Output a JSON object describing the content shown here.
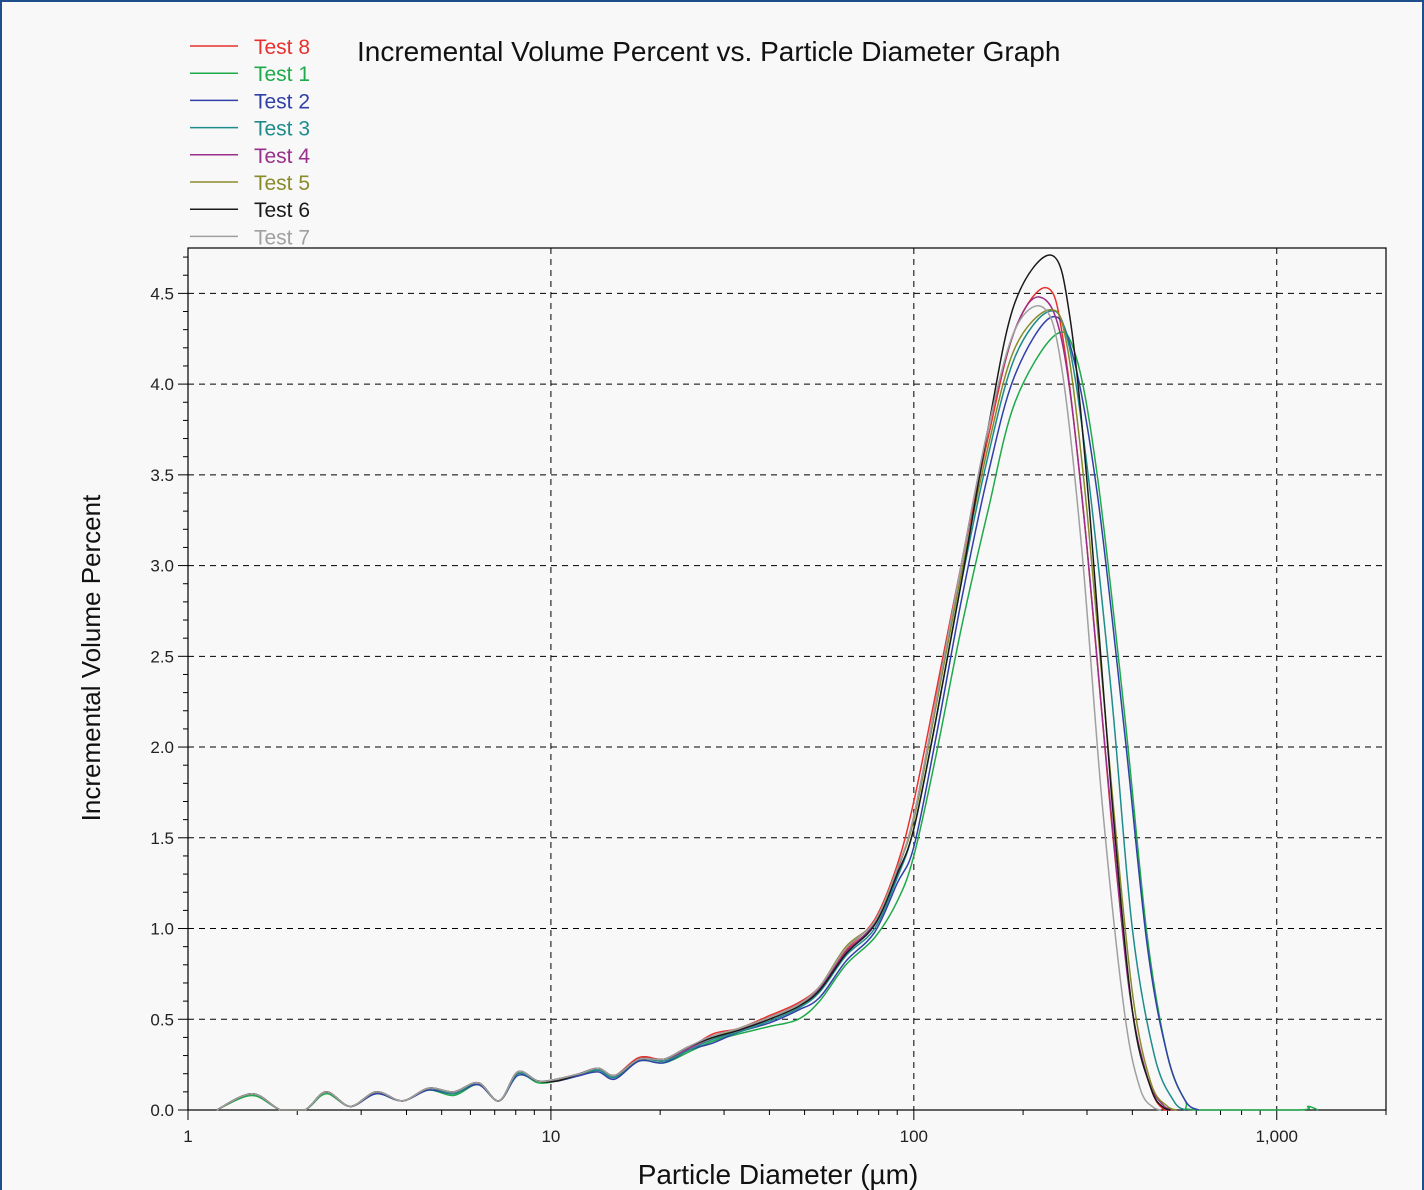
{
  "chart_data": {
    "type": "line",
    "title": "Incremental Volume Percent vs. Particle Diameter Graph",
    "xlabel": "Particle Diameter (µm)",
    "ylabel": "Incremental Volume Percent",
    "xscale": "log",
    "xlim": [
      1,
      2000
    ],
    "ylim": [
      0,
      4.75
    ],
    "grid": true,
    "legend": "top-left",
    "xticks": [
      {
        "value": 1,
        "label": "1"
      },
      {
        "value": 10,
        "label": "10"
      },
      {
        "value": 100,
        "label": "100"
      },
      {
        "value": 1000,
        "label": "1,000"
      }
    ],
    "yticks": [
      {
        "value": 0,
        "label": "0.0"
      },
      {
        "value": 0.5,
        "label": "0.5"
      },
      {
        "value": 1.0,
        "label": "1.0"
      },
      {
        "value": 1.5,
        "label": "1.5"
      },
      {
        "value": 2.0,
        "label": "2.0"
      },
      {
        "value": 2.5,
        "label": "2.5"
      },
      {
        "value": 3.0,
        "label": "3.0"
      },
      {
        "value": 3.5,
        "label": "3.5"
      },
      {
        "value": 4.0,
        "label": "4.0"
      },
      {
        "value": 4.5,
        "label": "4.5"
      }
    ],
    "series": [
      {
        "name": "Test 8",
        "color": "#e8312e",
        "peak_x": 233,
        "peak_y": 4.53,
        "end_x": 490,
        "x": [
          1.2,
          1.5,
          1.8,
          2.1,
          2.4,
          2.8,
          3.3,
          3.9,
          4.6,
          5.4,
          6.3,
          7.2,
          8.1,
          9.2,
          10.4,
          12,
          13.5,
          15,
          17.5,
          20.5,
          24,
          28,
          33,
          40,
          48,
          55,
          65,
          78,
          90,
          100,
          115,
          135,
          160,
          190,
          233,
          260,
          300,
          350,
          400,
          450,
          490,
          520
        ],
        "y": [
          0.0,
          0.09,
          0.0,
          0.0,
          0.1,
          0.02,
          0.1,
          0.05,
          0.12,
          0.09,
          0.15,
          0.05,
          0.21,
          0.16,
          0.17,
          0.2,
          0.23,
          0.19,
          0.29,
          0.28,
          0.34,
          0.42,
          0.45,
          0.52,
          0.59,
          0.68,
          0.88,
          1.05,
          1.35,
          1.7,
          2.3,
          3.0,
          3.7,
          4.3,
          4.53,
          4.2,
          3.1,
          1.6,
          0.55,
          0.12,
          0.0,
          0.0
        ]
      },
      {
        "name": "Test 1",
        "color": "#1faa4a",
        "peak_x": 245,
        "peak_y": 4.27,
        "end_x": 600,
        "x": [
          1.2,
          1.5,
          1.8,
          2.1,
          2.4,
          2.8,
          3.3,
          3.9,
          4.6,
          5.4,
          6.3,
          7.2,
          8.1,
          9.2,
          10.4,
          12,
          13.5,
          15,
          17.5,
          20.5,
          24,
          28,
          33,
          40,
          48,
          55,
          65,
          78,
          90,
          100,
          115,
          135,
          160,
          190,
          245,
          280,
          320,
          380,
          440,
          500,
          560,
          600,
          1150,
          1220,
          1300
        ],
        "y": [
          0.0,
          0.08,
          0.0,
          0.0,
          0.09,
          0.02,
          0.09,
          0.05,
          0.11,
          0.08,
          0.14,
          0.05,
          0.2,
          0.15,
          0.16,
          0.19,
          0.22,
          0.18,
          0.27,
          0.26,
          0.32,
          0.38,
          0.42,
          0.46,
          0.5,
          0.6,
          0.8,
          0.95,
          1.15,
          1.4,
          1.95,
          2.65,
          3.3,
          3.9,
          4.27,
          4.15,
          3.5,
          2.2,
          0.95,
          0.3,
          0.05,
          0.0,
          0.0,
          0.02,
          0.0
        ]
      },
      {
        "name": "Test 2",
        "color": "#3040a8",
        "peak_x": 240,
        "peak_y": 4.37,
        "end_x": 610,
        "x": [
          1.2,
          1.5,
          1.8,
          2.1,
          2.4,
          2.8,
          3.3,
          3.9,
          4.6,
          5.4,
          6.3,
          7.2,
          8.1,
          9.2,
          10.4,
          12,
          13.5,
          15,
          17.5,
          20.5,
          24,
          28,
          33,
          40,
          48,
          55,
          65,
          78,
          90,
          100,
          115,
          135,
          160,
          190,
          240,
          275,
          320,
          380,
          440,
          500,
          560,
          610
        ],
        "y": [
          0.0,
          0.09,
          0.0,
          0.0,
          0.1,
          0.02,
          0.09,
          0.05,
          0.11,
          0.09,
          0.14,
          0.05,
          0.19,
          0.16,
          0.16,
          0.19,
          0.21,
          0.17,
          0.27,
          0.26,
          0.33,
          0.37,
          0.43,
          0.48,
          0.55,
          0.62,
          0.82,
          0.98,
          1.25,
          1.45,
          2.05,
          2.8,
          3.5,
          4.05,
          4.37,
          4.15,
          3.4,
          2.1,
          0.9,
          0.3,
          0.05,
          0.0
        ]
      },
      {
        "name": "Test 3",
        "color": "#1e8c8c",
        "peak_x": 235,
        "peak_y": 4.4,
        "end_x": 560,
        "x": [
          1.2,
          1.5,
          1.8,
          2.1,
          2.4,
          2.8,
          3.3,
          3.9,
          4.6,
          5.4,
          6.3,
          7.2,
          8.1,
          9.2,
          10.4,
          12,
          13.5,
          15,
          17.5,
          20.5,
          24,
          28,
          33,
          40,
          48,
          55,
          65,
          78,
          90,
          100,
          115,
          135,
          160,
          190,
          235,
          265,
          300,
          350,
          400,
          460,
          520,
          560
        ],
        "y": [
          0.0,
          0.09,
          0.0,
          0.0,
          0.1,
          0.02,
          0.1,
          0.05,
          0.12,
          0.09,
          0.15,
          0.05,
          0.2,
          0.16,
          0.17,
          0.2,
          0.22,
          0.18,
          0.28,
          0.27,
          0.33,
          0.39,
          0.43,
          0.49,
          0.56,
          0.65,
          0.85,
          1.0,
          1.28,
          1.55,
          2.15,
          2.9,
          3.6,
          4.15,
          4.4,
          4.25,
          3.55,
          2.3,
          1.0,
          0.3,
          0.05,
          0.0
        ]
      },
      {
        "name": "Test 4",
        "color": "#9a2e8c",
        "peak_x": 222,
        "peak_y": 4.48,
        "end_x": 520,
        "x": [
          1.2,
          1.5,
          1.8,
          2.1,
          2.4,
          2.8,
          3.3,
          3.9,
          4.6,
          5.4,
          6.3,
          7.2,
          8.1,
          9.2,
          10.4,
          12,
          13.5,
          15,
          17.5,
          20.5,
          24,
          28,
          33,
          40,
          48,
          55,
          65,
          78,
          90,
          100,
          115,
          135,
          160,
          190,
          222,
          255,
          290,
          340,
          390,
          440,
          490,
          520
        ],
        "y": [
          0.0,
          0.09,
          0.0,
          0.0,
          0.1,
          0.02,
          0.1,
          0.05,
          0.12,
          0.1,
          0.15,
          0.05,
          0.21,
          0.16,
          0.17,
          0.2,
          0.23,
          0.19,
          0.28,
          0.28,
          0.34,
          0.4,
          0.44,
          0.51,
          0.58,
          0.67,
          0.87,
          1.03,
          1.32,
          1.62,
          2.25,
          3.0,
          3.75,
          4.3,
          4.48,
          4.25,
          3.4,
          1.9,
          0.7,
          0.18,
          0.02,
          0.0
        ]
      },
      {
        "name": "Test 5",
        "color": "#8a8a2a",
        "peak_x": 238,
        "peak_y": 4.41,
        "end_x": 530,
        "x": [
          1.2,
          1.5,
          1.8,
          2.1,
          2.4,
          2.8,
          3.3,
          3.9,
          4.6,
          5.4,
          6.3,
          7.2,
          8.1,
          9.2,
          10.4,
          12,
          13.5,
          15,
          17.5,
          20.5,
          24,
          28,
          33,
          40,
          48,
          55,
          65,
          78,
          90,
          100,
          115,
          135,
          160,
          190,
          238,
          265,
          300,
          350,
          400,
          450,
          500,
          530
        ],
        "y": [
          0.0,
          0.09,
          0.0,
          0.0,
          0.1,
          0.02,
          0.1,
          0.05,
          0.12,
          0.1,
          0.15,
          0.05,
          0.21,
          0.16,
          0.17,
          0.2,
          0.23,
          0.19,
          0.28,
          0.28,
          0.35,
          0.4,
          0.45,
          0.51,
          0.58,
          0.68,
          0.9,
          1.04,
          1.33,
          1.6,
          2.22,
          2.95,
          3.65,
          4.2,
          4.41,
          4.2,
          3.3,
          1.8,
          0.65,
          0.15,
          0.02,
          0.0
        ]
      },
      {
        "name": "Test 6",
        "color": "#1a1a1a",
        "peak_x": 240,
        "peak_y": 4.71,
        "end_x": 510,
        "x": [
          1.2,
          1.5,
          1.8,
          2.1,
          2.4,
          2.8,
          3.3,
          3.9,
          4.6,
          5.4,
          6.3,
          7.2,
          8.1,
          9.2,
          10.4,
          12,
          13.5,
          15,
          17.5,
          20.5,
          24,
          28,
          33,
          40,
          48,
          55,
          65,
          78,
          90,
          100,
          115,
          135,
          160,
          190,
          240,
          270,
          305,
          350,
          400,
          450,
          490,
          510
        ],
        "y": [
          0.0,
          0.09,
          0.0,
          0.0,
          0.1,
          0.02,
          0.1,
          0.05,
          0.12,
          0.1,
          0.15,
          0.05,
          0.21,
          0.16,
          0.16,
          0.2,
          0.23,
          0.19,
          0.28,
          0.28,
          0.35,
          0.4,
          0.44,
          0.5,
          0.57,
          0.66,
          0.86,
          1.02,
          1.3,
          1.55,
          2.15,
          2.9,
          3.75,
          4.45,
          4.71,
          4.35,
          3.3,
          1.75,
          0.55,
          0.12,
          0.01,
          0.0
        ]
      },
      {
        "name": "Test 7",
        "color": "#a0a0a0",
        "peak_x": 228,
        "peak_y": 4.42,
        "end_x": 480,
        "x": [
          1.2,
          1.5,
          1.8,
          2.1,
          2.4,
          2.8,
          3.3,
          3.9,
          4.6,
          5.4,
          6.3,
          7.2,
          8.1,
          9.2,
          10.4,
          12,
          13.5,
          15,
          17.5,
          20.5,
          24,
          28,
          33,
          40,
          48,
          55,
          65,
          78,
          90,
          100,
          115,
          135,
          160,
          190,
          228,
          255,
          290,
          330,
          380,
          420,
          460,
          480
        ],
        "y": [
          0.0,
          0.09,
          0.0,
          0.0,
          0.1,
          0.02,
          0.1,
          0.05,
          0.12,
          0.1,
          0.15,
          0.05,
          0.21,
          0.16,
          0.17,
          0.2,
          0.23,
          0.19,
          0.28,
          0.28,
          0.35,
          0.41,
          0.45,
          0.51,
          0.58,
          0.68,
          0.89,
          1.04,
          1.33,
          1.62,
          2.25,
          3.0,
          3.75,
          4.3,
          4.42,
          4.1,
          3.1,
          1.7,
          0.55,
          0.12,
          0.01,
          0.0
        ]
      }
    ]
  }
}
